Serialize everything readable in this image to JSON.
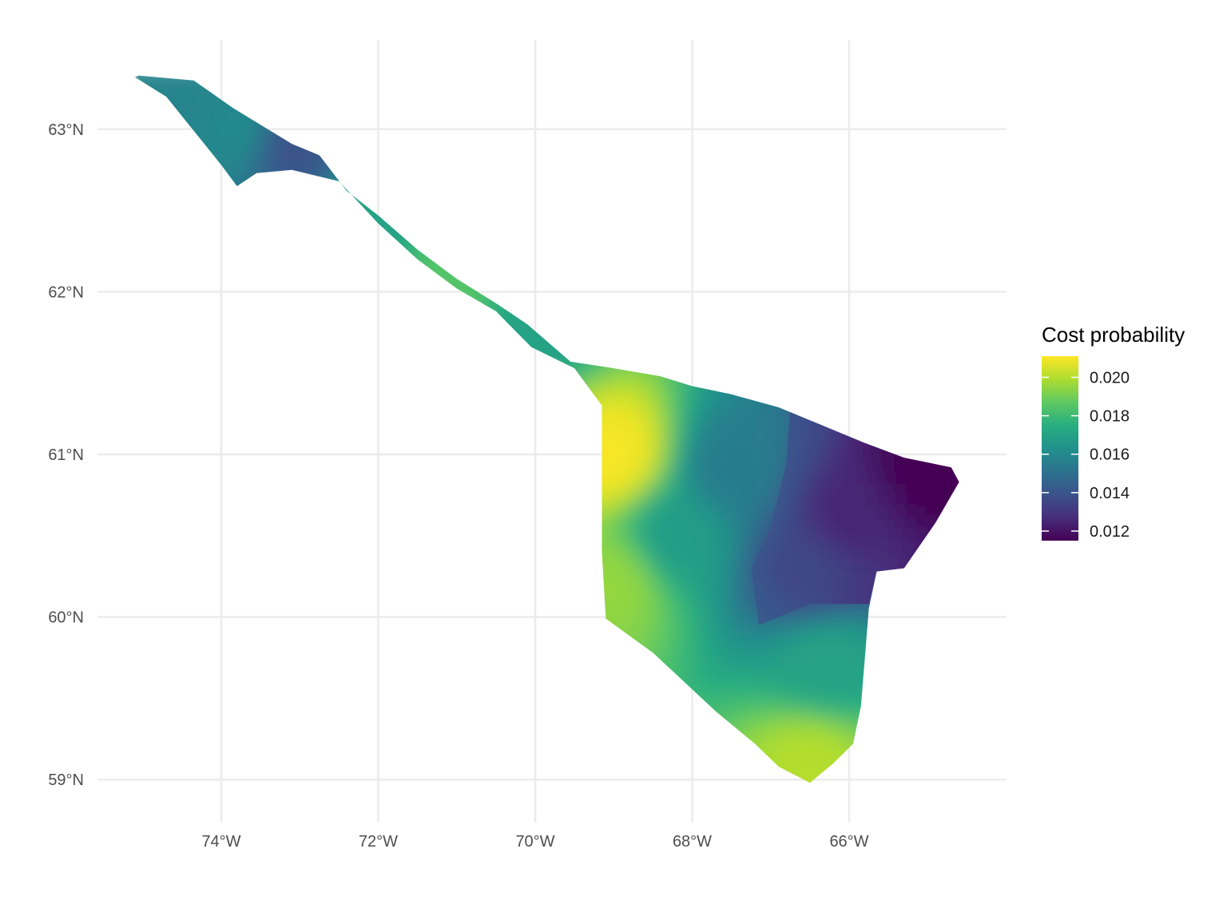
{
  "chart_data": {
    "type": "heatmap",
    "kind": "choropleth-map",
    "x_axis": {
      "ticks": [
        -74,
        -72,
        -70,
        -68,
        -66
      ],
      "tick_labels": [
        "74°W",
        "72°W",
        "70°W",
        "68°W",
        "66°W"
      ],
      "range": [
        -75.5,
        -63.5
      ]
    },
    "y_axis": {
      "ticks": [
        59,
        60,
        61,
        62,
        63
      ],
      "tick_labels": [
        "59°N",
        "60°N",
        "61°N",
        "62°N",
        "63°N"
      ],
      "range": [
        58.75,
        63.5
      ]
    },
    "grid": true,
    "legend": {
      "title": "Cost probability",
      "position": "right",
      "palette": "viridis",
      "min": 0.0115,
      "max": 0.0211,
      "ticks": [
        0.012,
        0.014,
        0.016,
        0.018,
        0.02
      ],
      "tick_labels": [
        "0.012",
        "0.014",
        "0.016",
        "0.018",
        "0.020"
      ],
      "colors": [
        "#440154",
        "#472d7b",
        "#3b528b",
        "#2c728e",
        "#21918c",
        "#28ae80",
        "#5ec962",
        "#addc30",
        "#fde725"
      ]
    },
    "region": {
      "name_shown": false,
      "outline_lonlat": [
        [
          -75.05,
          63.33
        ],
        [
          -74.35,
          63.3
        ],
        [
          -73.85,
          63.13
        ],
        [
          -73.1,
          62.91
        ],
        [
          -72.75,
          62.84
        ],
        [
          -72.4,
          62.62
        ],
        [
          -72.0,
          62.47
        ],
        [
          -71.5,
          62.26
        ],
        [
          -71.0,
          62.08
        ],
        [
          -70.5,
          61.93
        ],
        [
          -70.1,
          61.8
        ],
        [
          -69.55,
          61.57
        ],
        [
          -69.0,
          61.53
        ],
        [
          -68.4,
          61.48
        ],
        [
          -68.0,
          61.42
        ],
        [
          -67.5,
          61.37
        ],
        [
          -66.9,
          61.29
        ],
        [
          -66.3,
          61.17
        ],
        [
          -65.8,
          61.07
        ],
        [
          -65.3,
          60.98
        ],
        [
          -64.7,
          60.92
        ],
        [
          -64.6,
          60.83
        ],
        [
          -64.9,
          60.58
        ],
        [
          -65.3,
          60.3
        ],
        [
          -65.65,
          60.28
        ],
        [
          -65.75,
          60.05
        ],
        [
          -65.8,
          59.75
        ],
        [
          -65.85,
          59.45
        ],
        [
          -65.95,
          59.22
        ],
        [
          -66.2,
          59.1
        ],
        [
          -66.5,
          58.98
        ],
        [
          -66.9,
          59.08
        ],
        [
          -67.2,
          59.22
        ],
        [
          -67.7,
          59.42
        ],
        [
          -68.1,
          59.6
        ],
        [
          -68.5,
          59.78
        ],
        [
          -69.1,
          59.99
        ],
        [
          -69.15,
          60.4
        ],
        [
          -69.15,
          60.8
        ],
        [
          -69.15,
          61.3
        ],
        [
          -69.5,
          61.53
        ],
        [
          -70.05,
          61.66
        ],
        [
          -70.5,
          61.88
        ],
        [
          -71.0,
          62.02
        ],
        [
          -71.5,
          62.2
        ],
        [
          -72.0,
          62.42
        ],
        [
          -72.5,
          62.68
        ],
        [
          -73.1,
          62.75
        ],
        [
          -73.55,
          62.73
        ],
        [
          -73.8,
          62.65
        ],
        [
          -74.0,
          62.78
        ],
        [
          -74.4,
          63.02
        ],
        [
          -74.7,
          63.2
        ],
        [
          -75.1,
          63.32
        ]
      ],
      "dark_band_lonlat": [
        [
          -66.75,
          61.28
        ],
        [
          -66.3,
          61.17
        ],
        [
          -65.8,
          61.07
        ],
        [
          -65.3,
          60.98
        ],
        [
          -64.7,
          60.92
        ],
        [
          -64.6,
          60.83
        ],
        [
          -64.9,
          60.58
        ],
        [
          -65.3,
          60.3
        ],
        [
          -65.65,
          60.28
        ],
        [
          -65.75,
          60.08
        ],
        [
          -66.5,
          60.08
        ],
        [
          -67.15,
          59.95
        ],
        [
          -67.25,
          60.3
        ],
        [
          -67.0,
          60.55
        ],
        [
          -66.8,
          60.95
        ]
      ]
    },
    "value_field_samples": [
      {
        "lon": -65.0,
        "lat": 60.9,
        "value": 0.0115
      },
      {
        "lon": -66.0,
        "lat": 60.6,
        "value": 0.0125
      },
      {
        "lon": -66.5,
        "lat": 60.3,
        "value": 0.0135
      },
      {
        "lon": -67.5,
        "lat": 60.9,
        "value": 0.0155
      },
      {
        "lon": -68.2,
        "lat": 60.5,
        "value": 0.0168
      },
      {
        "lon": -69.0,
        "lat": 61.0,
        "value": 0.021
      },
      {
        "lon": -69.0,
        "lat": 60.2,
        "value": 0.0195
      },
      {
        "lon": -66.5,
        "lat": 59.1,
        "value": 0.02
      },
      {
        "lon": -66.3,
        "lat": 59.7,
        "value": 0.017
      },
      {
        "lon": -71.0,
        "lat": 62.1,
        "value": 0.0185
      },
      {
        "lon": -70.0,
        "lat": 61.8,
        "value": 0.017
      },
      {
        "lon": -72.0,
        "lat": 62.5,
        "value": 0.017
      },
      {
        "lon": -73.1,
        "lat": 62.9,
        "value": 0.014
      },
      {
        "lon": -73.8,
        "lat": 63.0,
        "value": 0.016
      },
      {
        "lon": -74.6,
        "lat": 63.2,
        "value": 0.0158
      }
    ]
  }
}
